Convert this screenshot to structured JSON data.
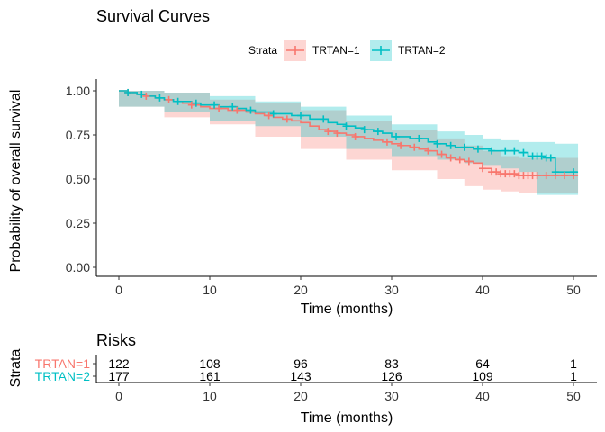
{
  "chart_data": {
    "type": "line",
    "title": "Survival Curves",
    "xlabel": "Time (months)",
    "ylabel": "Probability of overall survival",
    "xlim": [
      0,
      50
    ],
    "ylim": [
      0,
      1
    ],
    "x_ticks": [
      0,
      10,
      20,
      30,
      40,
      50
    ],
    "y_ticks": [
      0.0,
      0.25,
      0.5,
      0.75,
      1.0
    ],
    "y_tick_labels": [
      "0.00",
      "0.25",
      "0.50",
      "0.75",
      "1.00"
    ],
    "grid": false,
    "legend": {
      "title": "Strata",
      "placement": "top"
    },
    "series": [
      {
        "name": "TRTAN=1",
        "color": "#F8766D",
        "steps": [
          [
            0,
            1.0
          ],
          [
            1,
            0.99
          ],
          [
            2,
            0.98
          ],
          [
            3,
            0.97
          ],
          [
            4,
            0.96
          ],
          [
            5,
            0.95
          ],
          [
            6,
            0.94
          ],
          [
            7,
            0.93
          ],
          [
            8,
            0.92
          ],
          [
            9,
            0.91
          ],
          [
            10,
            0.9
          ],
          [
            12,
            0.89
          ],
          [
            14,
            0.88
          ],
          [
            15,
            0.87
          ],
          [
            16,
            0.86
          ],
          [
            17,
            0.85
          ],
          [
            18,
            0.84
          ],
          [
            19,
            0.83
          ],
          [
            20,
            0.82
          ],
          [
            21,
            0.8
          ],
          [
            22,
            0.78
          ],
          [
            23,
            0.77
          ],
          [
            24,
            0.76
          ],
          [
            25,
            0.75
          ],
          [
            26,
            0.74
          ],
          [
            27,
            0.73
          ],
          [
            28,
            0.72
          ],
          [
            29,
            0.71
          ],
          [
            30,
            0.7
          ],
          [
            31,
            0.69
          ],
          [
            32,
            0.68
          ],
          [
            33,
            0.67
          ],
          [
            34,
            0.66
          ],
          [
            35,
            0.64
          ],
          [
            36,
            0.62
          ],
          [
            37,
            0.61
          ],
          [
            38,
            0.6
          ],
          [
            39,
            0.59
          ],
          [
            40,
            0.56
          ],
          [
            41,
            0.54
          ],
          [
            42,
            0.53
          ],
          [
            43,
            0.53
          ],
          [
            44,
            0.52
          ],
          [
            46,
            0.52
          ],
          [
            48,
            0.52
          ],
          [
            50.5,
            0.52
          ]
        ],
        "lower": [
          [
            0,
            1.0
          ],
          [
            5,
            0.91
          ],
          [
            10,
            0.85
          ],
          [
            15,
            0.81
          ],
          [
            20,
            0.74
          ],
          [
            25,
            0.67
          ],
          [
            30,
            0.61
          ],
          [
            35,
            0.55
          ],
          [
            38,
            0.5
          ],
          [
            40,
            0.46
          ],
          [
            42,
            0.44
          ],
          [
            44,
            0.43
          ],
          [
            46,
            0.42
          ],
          [
            48,
            0.42
          ],
          [
            50.5,
            0.42
          ]
        ],
        "upper": [
          [
            0,
            1.0
          ],
          [
            5,
            0.99
          ],
          [
            10,
            0.95
          ],
          [
            15,
            0.93
          ],
          [
            20,
            0.89
          ],
          [
            25,
            0.83
          ],
          [
            30,
            0.78
          ],
          [
            35,
            0.73
          ],
          [
            38,
            0.69
          ],
          [
            40,
            0.66
          ],
          [
            42,
            0.63
          ],
          [
            44,
            0.62
          ],
          [
            46,
            0.62
          ],
          [
            48,
            0.62
          ],
          [
            50.5,
            0.62
          ]
        ],
        "censor_x": [
          1,
          3,
          5.5,
          8,
          11,
          13,
          16.5,
          18.5,
          23,
          24,
          26,
          29.5,
          31,
          32.5,
          34,
          35.5,
          36.5,
          37.5,
          38.5,
          40,
          41,
          41.5,
          42,
          42.5,
          43,
          43.5,
          44,
          44.5,
          45,
          45.5,
          46,
          47,
          48,
          49,
          50
        ],
        "at_risk": [
          122,
          108,
          96,
          83,
          64,
          1
        ]
      },
      {
        "name": "TRTAN=2",
        "color": "#00BFC4",
        "steps": [
          [
            0,
            1.0
          ],
          [
            1,
            0.99
          ],
          [
            2,
            0.98
          ],
          [
            3,
            0.97
          ],
          [
            4,
            0.96
          ],
          [
            5,
            0.95
          ],
          [
            6,
            0.94
          ],
          [
            8,
            0.93
          ],
          [
            9,
            0.92
          ],
          [
            11,
            0.91
          ],
          [
            13,
            0.9
          ],
          [
            14,
            0.89
          ],
          [
            15,
            0.88
          ],
          [
            17,
            0.87
          ],
          [
            19,
            0.86
          ],
          [
            21,
            0.84
          ],
          [
            23,
            0.82
          ],
          [
            24,
            0.81
          ],
          [
            25,
            0.8
          ],
          [
            26,
            0.79
          ],
          [
            27,
            0.78
          ],
          [
            28,
            0.77
          ],
          [
            29,
            0.76
          ],
          [
            30,
            0.74
          ],
          [
            32,
            0.73
          ],
          [
            34,
            0.71
          ],
          [
            35,
            0.7
          ],
          [
            36,
            0.69
          ],
          [
            37,
            0.68
          ],
          [
            39,
            0.67
          ],
          [
            41,
            0.66
          ],
          [
            42,
            0.66
          ],
          [
            44,
            0.65
          ],
          [
            45,
            0.63
          ],
          [
            47,
            0.62
          ],
          [
            48,
            0.54
          ],
          [
            50.5,
            0.54
          ]
        ],
        "lower": [
          [
            0,
            1.0
          ],
          [
            5,
            0.91
          ],
          [
            10,
            0.88
          ],
          [
            15,
            0.83
          ],
          [
            20,
            0.8
          ],
          [
            25,
            0.74
          ],
          [
            30,
            0.67
          ],
          [
            35,
            0.63
          ],
          [
            38,
            0.61
          ],
          [
            40,
            0.59
          ],
          [
            42,
            0.58
          ],
          [
            44,
            0.56
          ],
          [
            46,
            0.54
          ],
          [
            48,
            0.41
          ],
          [
            50.5,
            0.41
          ]
        ],
        "upper": [
          [
            0,
            1.0
          ],
          [
            5,
            0.99
          ],
          [
            10,
            0.97
          ],
          [
            15,
            0.94
          ],
          [
            20,
            0.91
          ],
          [
            25,
            0.86
          ],
          [
            30,
            0.81
          ],
          [
            35,
            0.77
          ],
          [
            38,
            0.75
          ],
          [
            40,
            0.73
          ],
          [
            42,
            0.72
          ],
          [
            44,
            0.71
          ],
          [
            46,
            0.71
          ],
          [
            48,
            0.7
          ],
          [
            50.5,
            0.7
          ]
        ],
        "censor_x": [
          1,
          2.5,
          4.5,
          6.5,
          8.5,
          10.5,
          12.5,
          14.5,
          17,
          20,
          22.5,
          25,
          27,
          28.5,
          30.5,
          33,
          35,
          36.5,
          38,
          39.5,
          41,
          42.5,
          43.5,
          44.5,
          45.5,
          46,
          46.5,
          47,
          47.5,
          48,
          50
        ],
        "at_risk": [
          177,
          161,
          143,
          126,
          109,
          1
        ]
      }
    ],
    "risk_table": {
      "title": "Risks",
      "ylabel": "Strata",
      "xlabel": "Time (months)",
      "times": [
        0,
        10,
        20,
        30,
        40,
        50
      ],
      "strata_labels": [
        "TRTAN=1",
        "TRTAN=2"
      ]
    }
  }
}
